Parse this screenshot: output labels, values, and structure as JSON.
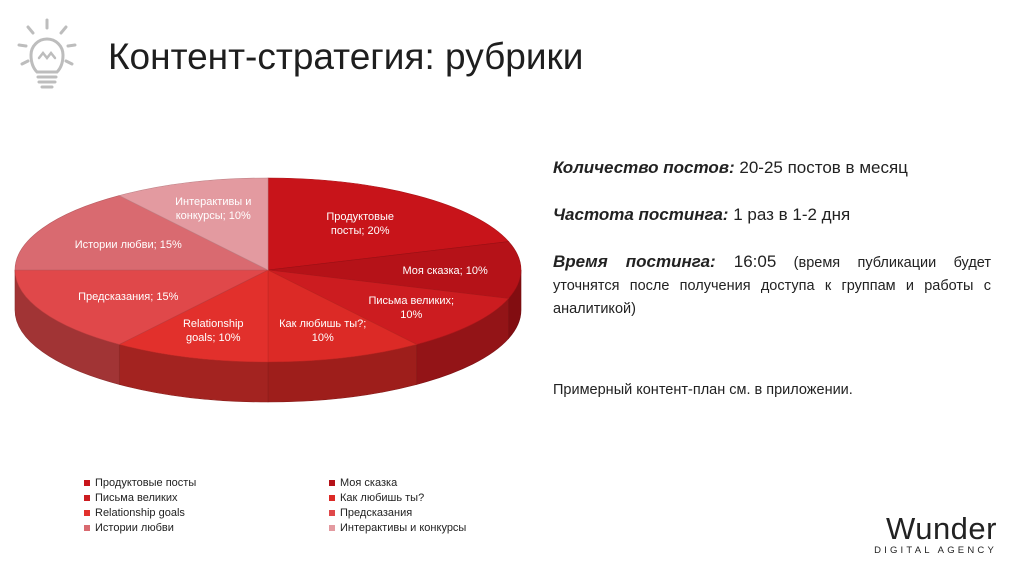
{
  "header": {
    "title": "Контент-стратегия: рубрики"
  },
  "info": {
    "posts_label": "Количество постов:",
    "posts_value": " 20-25 постов в месяц",
    "freq_label": "Частота постинга:",
    "freq_value": " 1 раз в 1-2 дня",
    "time_label": "Время постинга:",
    "time_value": " 16:05",
    "time_note": " (время публикации будет уточнятся после получения доступа к группам и работы с аналитикой)",
    "plan_note": "Примерный контент-план см. в приложении."
  },
  "brand": {
    "name": "Wunder",
    "sub": "DIGITAL AGENCY"
  },
  "chart_data": {
    "type": "pie",
    "title": "",
    "unit": "%",
    "legend_position": "bottom",
    "slices": [
      {
        "name": "Продуктовые посты",
        "label": "Продуктовые посты; 20%",
        "value": 20,
        "color": "#c8141a"
      },
      {
        "name": "Моя сказка",
        "label": "Моя сказка; 10%",
        "value": 10,
        "color": "#b51218"
      },
      {
        "name": "Письма великих",
        "label": "Письма великих; 10%",
        "value": 10,
        "color": "#cc1c20"
      },
      {
        "name": "Как любишь ты?",
        "label": "Как любишь ты?; 10%",
        "value": 10,
        "color": "#dc2a26"
      },
      {
        "name": "Relationship goals",
        "label": "Relationship goals; 10%",
        "value": 10,
        "color": "#e2302c"
      },
      {
        "name": "Предсказания",
        "label": "Предсказания; 15%",
        "value": 15,
        "color": "#e0484a"
      },
      {
        "name": "Истории любви",
        "label": "Истории любви; 15%",
        "value": 15,
        "color": "#d96a70"
      },
      {
        "name": "Интерактивы и конкурсы",
        "label": "Интерактивы и конкурсы; 10%",
        "value": 10,
        "color": "#e39aa0"
      }
    ]
  }
}
